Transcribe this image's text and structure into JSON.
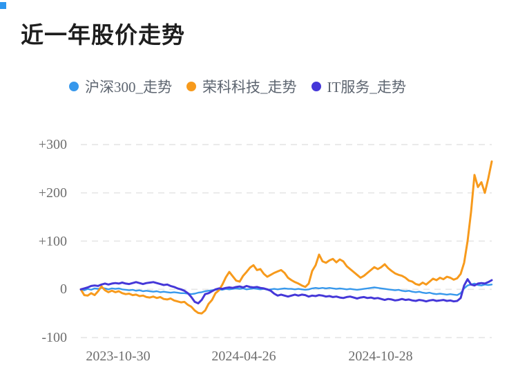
{
  "page": {
    "title": "近一年股价走势"
  },
  "chart_data": {
    "type": "line",
    "title": "近一年股价走势",
    "legend_position": "top",
    "grid": "horizontal-dashed",
    "grid_color": "#e8e8e8",
    "background_color": "#ffffff",
    "ylim": [
      -100,
      300
    ],
    "yticks": [
      "+300",
      "+200",
      "+100",
      "0",
      "-100"
    ],
    "ytick_values": [
      300,
      200,
      100,
      0,
      -100
    ],
    "xticks": [
      "2023-10-30",
      "2024-04-26",
      "2024-10-28"
    ],
    "series": [
      {
        "name": "沪深300_走势",
        "color": "#3798ec",
        "width": 2.4,
        "values": [
          0,
          -2,
          1,
          -1,
          2,
          1,
          3,
          2,
          0,
          2,
          1,
          2,
          0,
          -1,
          -2,
          -1,
          -3,
          -2,
          -4,
          -3,
          -4,
          -5,
          -4,
          -6,
          -5,
          -6,
          -7,
          -6,
          -7,
          -8,
          -8,
          -9,
          -10,
          -9,
          -7,
          -6,
          -4,
          -3,
          -2,
          -1,
          0,
          -1,
          1,
          0,
          1,
          2,
          1,
          2,
          0,
          1,
          2,
          1,
          0,
          1,
          -1,
          0,
          1,
          0,
          1,
          2,
          1,
          1,
          0,
          1,
          0,
          -1,
          0,
          2,
          3,
          2,
          3,
          2,
          3,
          2,
          1,
          2,
          1,
          0,
          1,
          0,
          -1,
          0,
          1,
          2,
          3,
          4,
          3,
          2,
          1,
          0,
          -1,
          -2,
          -1,
          -3,
          -4,
          -3,
          -5,
          -6,
          -5,
          -7,
          -8,
          -7,
          -9,
          -10,
          -9,
          -10,
          -11,
          -10,
          -11,
          -12,
          -8,
          2,
          8,
          10,
          12,
          9,
          8,
          10,
          9,
          10
        ]
      },
      {
        "name": "荣科科技_走势",
        "color": "#f79a1c",
        "width": 3,
        "values": [
          0,
          -12,
          -13,
          -8,
          -12,
          -4,
          6,
          -2,
          -6,
          -3,
          -6,
          -4,
          -8,
          -10,
          -9,
          -12,
          -11,
          -14,
          -13,
          -16,
          -17,
          -15,
          -18,
          -16,
          -20,
          -21,
          -19,
          -23,
          -25,
          -27,
          -26,
          -32,
          -36,
          -44,
          -49,
          -50,
          -44,
          -30,
          -22,
          -8,
          -2,
          10,
          25,
          36,
          27,
          18,
          16,
          28,
          36,
          45,
          50,
          40,
          42,
          32,
          26,
          30,
          34,
          37,
          40,
          34,
          24,
          19,
          15,
          12,
          8,
          5,
          12,
          38,
          50,
          72,
          58,
          55,
          60,
          63,
          56,
          62,
          58,
          48,
          42,
          36,
          30,
          24,
          28,
          34,
          40,
          46,
          42,
          46,
          52,
          44,
          38,
          33,
          30,
          28,
          24,
          18,
          16,
          11,
          9,
          14,
          10,
          16,
          22,
          19,
          24,
          21,
          26,
          24,
          20,
          23,
          32,
          55,
          100,
          160,
          237,
          212,
          222,
          200,
          230,
          265
        ]
      },
      {
        "name": "IT服务_走势",
        "color": "#4537d8",
        "width": 3,
        "values": [
          0,
          2,
          4,
          7,
          8,
          7,
          10,
          12,
          10,
          12,
          13,
          12,
          14,
          12,
          11,
          13,
          15,
          13,
          11,
          13,
          14,
          15,
          13,
          11,
          9,
          10,
          7,
          5,
          2,
          0,
          -3,
          -8,
          -16,
          -26,
          -29,
          -22,
          -10,
          -8,
          -4,
          0,
          2,
          1,
          3,
          4,
          3,
          5,
          6,
          4,
          7,
          5,
          4,
          5,
          3,
          2,
          0,
          -3,
          -9,
          -13,
          -11,
          -13,
          -15,
          -13,
          -11,
          -13,
          -11,
          -12,
          -15,
          -13,
          -14,
          -12,
          -13,
          -15,
          -14,
          -16,
          -15,
          -17,
          -18,
          -16,
          -15,
          -17,
          -19,
          -17,
          -16,
          -18,
          -17,
          -19,
          -18,
          -20,
          -22,
          -20,
          -21,
          -23,
          -22,
          -20,
          -22,
          -21,
          -23,
          -24,
          -22,
          -23,
          -25,
          -23,
          -22,
          -24,
          -23,
          -22,
          -24,
          -23,
          -25,
          -24,
          -18,
          8,
          21,
          10,
          8,
          12,
          13,
          12,
          15,
          19
        ]
      }
    ]
  }
}
